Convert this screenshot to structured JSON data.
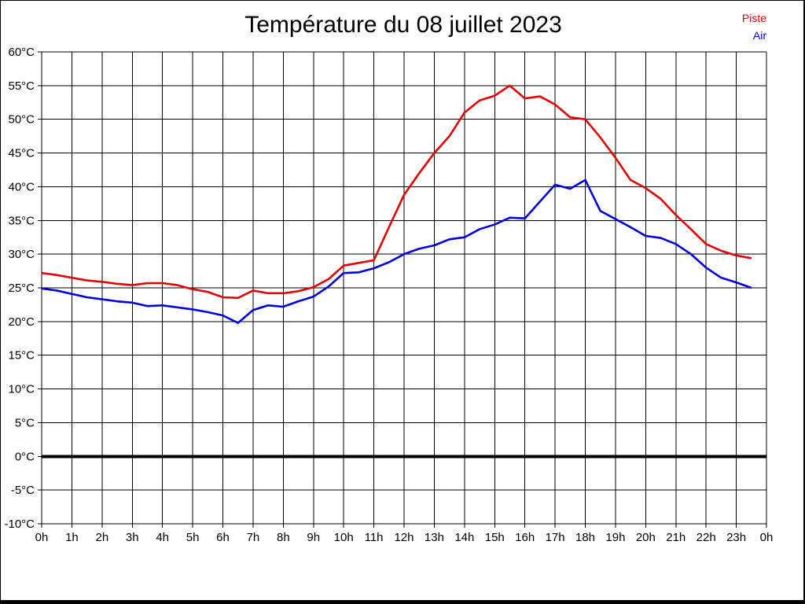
{
  "title": "Température du 08 juillet 2023",
  "legend": {
    "items": [
      {
        "label": "Piste",
        "color": "#e60000"
      },
      {
        "label": "Air",
        "color": "#0000e0"
      }
    ]
  },
  "chart_data": {
    "type": "line",
    "title": "Température du 08 juillet 2023",
    "xlabel": "",
    "ylabel": "",
    "xlim": [
      0,
      24
    ],
    "ylim": [
      -10,
      60
    ],
    "grid": true,
    "x_tick_labels": [
      "0h",
      "1h",
      "2h",
      "3h",
      "4h",
      "5h",
      "6h",
      "7h",
      "8h",
      "9h",
      "10h",
      "11h",
      "12h",
      "13h",
      "14h",
      "15h",
      "16h",
      "17h",
      "18h",
      "19h",
      "20h",
      "21h",
      "22h",
      "23h",
      "0h"
    ],
    "y_ticks": [
      60,
      55,
      50,
      45,
      40,
      35,
      30,
      25,
      20,
      15,
      10,
      5,
      0,
      -5,
      -10
    ],
    "y_tick_labels": [
      "60°C",
      "55°C",
      "50°C",
      "45°C",
      "40°C",
      "35°C",
      "30°C",
      "25°C",
      "20°C",
      "15°C",
      "10°C",
      "5°C",
      "0°C",
      "-5°C",
      "-10°C"
    ],
    "zero_line_bold": true,
    "legend_position": "top-right",
    "x": [
      0,
      0.5,
      1,
      1.5,
      2,
      2.5,
      3,
      3.5,
      4,
      4.5,
      5,
      5.5,
      6,
      6.5,
      7,
      7.5,
      8,
      8.5,
      9,
      9.5,
      10,
      10.5,
      11,
      11.5,
      12,
      12.5,
      13,
      13.5,
      14,
      14.5,
      15,
      15.5,
      16,
      16.5,
      17,
      17.5,
      18,
      18.5,
      19,
      19.5,
      20,
      20.5,
      21,
      21.5,
      22,
      22.5,
      23,
      23.5
    ],
    "series": [
      {
        "name": "Piste",
        "color": "#e60000",
        "values": [
          27.2,
          26.9,
          26.5,
          26.1,
          25.9,
          25.6,
          25.4,
          25.7,
          25.7,
          25.4,
          24.8,
          24.4,
          23.6,
          23.5,
          24.6,
          24.2,
          24.2,
          24.5,
          25.1,
          26.3,
          28.3,
          28.7,
          29.1,
          34,
          38.8,
          42,
          45,
          47.5,
          51,
          52.8,
          53.5,
          55,
          53.1,
          53.4,
          52.2,
          50.3,
          50,
          47.3,
          44.3,
          41,
          39.8,
          38.2,
          35.8,
          33.7,
          31.5,
          30.5,
          29.8,
          29.4
        ]
      },
      {
        "name": "Air",
        "color": "#0000e0",
        "values": [
          24.9,
          24.6,
          24.1,
          23.6,
          23.3,
          23,
          22.8,
          22.3,
          22.4,
          22.1,
          21.8,
          21.4,
          20.9,
          19.8,
          21.7,
          22.4,
          22.2,
          23,
          23.7,
          25.2,
          27.2,
          27.3,
          27.9,
          28.8,
          30,
          30.8,
          31.3,
          32.2,
          32.5,
          33.7,
          34.4,
          35.4,
          35.3,
          37.8,
          40.3,
          39.7,
          41,
          36.4,
          35.2,
          34,
          32.7,
          32.4,
          31.5,
          30,
          28,
          26.5,
          25.8,
          25
        ]
      }
    ]
  }
}
